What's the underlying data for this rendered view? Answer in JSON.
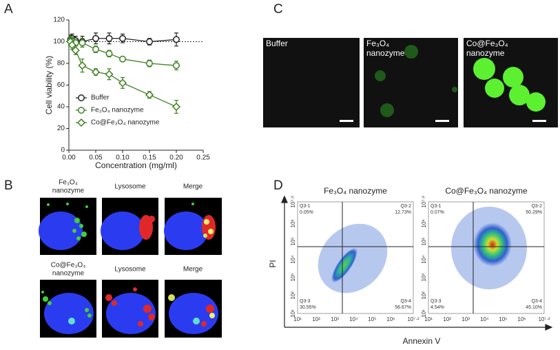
{
  "chart_data": {
    "type": "line",
    "panel": "A",
    "xlabel": "Concentration (mg/ml)",
    "ylabel": "Cell viability (%)",
    "x": [
      0.003,
      0.006,
      0.0125,
      0.025,
      0.05,
      0.075,
      0.1,
      0.15,
      0.2
    ],
    "xlim": [
      0,
      0.25
    ],
    "xticks": [
      {
        "value": 0,
        "label": "0.00"
      },
      {
        "value": 0.05,
        "label": "0.05"
      },
      {
        "value": 0.1,
        "label": "0.10"
      },
      {
        "value": 0.15,
        "label": "0.15"
      },
      {
        "value": 0.2,
        "label": "0.20"
      },
      {
        "value": 0.25,
        "label": "0.25"
      }
    ],
    "ylim": [
      0,
      120
    ],
    "yticks": [
      0,
      20,
      40,
      60,
      80,
      100,
      120
    ],
    "reference_line": 100,
    "series": [
      {
        "name": "Buffer",
        "color": "#222222",
        "marker": "circle",
        "values": [
          102,
          103,
          101,
          100,
          103,
          103,
          103,
          100,
          102
        ],
        "errors": [
          4,
          4,
          4,
          5,
          5,
          5,
          4,
          3,
          6
        ]
      },
      {
        "name": "Fe₃O₄ nanozyme",
        "color": "#3d7f1f",
        "marker": "circle",
        "values": [
          101,
          100,
          99,
          99,
          93,
          89,
          84,
          80,
          78
        ],
        "errors": [
          4,
          4,
          3,
          4,
          3,
          3,
          2,
          3,
          4
        ]
      },
      {
        "name": "Co@Fe₃O₄ nanozyme",
        "color": "#3d7f1f",
        "marker": "diamond",
        "values": [
          100,
          97,
          92,
          78,
          72,
          70,
          62,
          51,
          40
        ],
        "errors": [
          4,
          4,
          4,
          6,
          3,
          5,
          5,
          3,
          6
        ]
      }
    ]
  },
  "panel_b": {
    "letter": "B",
    "row_labels": [
      [
        "Fe₃O₄",
        "nanozyme"
      ],
      [
        "Co@Fe₃O₄",
        "nanozyme"
      ]
    ],
    "column_labels": [
      "Lysosome",
      "Merge"
    ]
  },
  "panel_c": {
    "letter": "C",
    "images": [
      [
        "Buffer"
      ],
      [
        "Fe₃O₄",
        "nanozyme"
      ],
      [
        "Co@Fe₃O₄",
        "nanozyme"
      ]
    ]
  },
  "panel_d": {
    "letter": "D",
    "ylabel": "PI",
    "xlabel": "Annexin V",
    "lim": [
      1,
      7.2
    ],
    "ticks": [
      {
        "value": 1,
        "label": "10¹"
      },
      {
        "value": 2,
        "label": "10²"
      },
      {
        "value": 3,
        "label": "10³"
      },
      {
        "value": 4,
        "label": "10⁴"
      },
      {
        "value": 5,
        "label": "10⁵"
      },
      {
        "value": 6,
        "label": "10⁶"
      },
      {
        "value": 7.2,
        "label": "10⁷·²"
      }
    ],
    "plots": [
      {
        "title": "Fe₃O₄ nanozyme",
        "quadrants": [
          [
            "Q3-1",
            "0.05%"
          ],
          [
            "Q3-2",
            "12.73%"
          ],
          [
            "Q3-3",
            "30.55%"
          ],
          [
            "Q3-4",
            "56.67%"
          ]
        ]
      },
      {
        "title": "Co@Fe₃O₄ nanozyme",
        "quadrants": [
          [
            "Q3-1",
            "0.07%"
          ],
          [
            "Q3-2",
            "50.29%"
          ],
          [
            "Q3-3",
            "4.54%"
          ],
          [
            "Q3-4",
            "45.10%"
          ]
        ]
      }
    ]
  }
}
